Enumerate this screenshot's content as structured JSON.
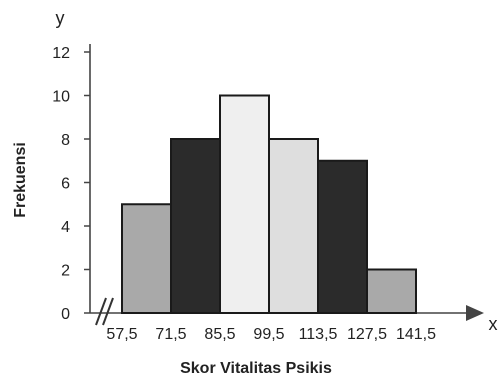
{
  "chart_data": {
    "type": "bar",
    "subtype": "histogram",
    "title": "",
    "x_axis_letter": "x",
    "y_axis_letter": "y",
    "xlabel": "Skor Vitalitas Psikis",
    "ylabel": "Frekuensi",
    "x_tick_labels": [
      "57,5",
      "71,5",
      "85,5",
      "99,5",
      "113,5",
      "127,5",
      "141,5"
    ],
    "y_tick_labels": [
      "0",
      "2",
      "4",
      "6",
      "8",
      "10",
      "12"
    ],
    "ylim": [
      0,
      12
    ],
    "x_axis_break": true,
    "grid": false,
    "bins": [
      {
        "from": 57.5,
        "to": 71.5,
        "value": 5,
        "color": "#a9a9a9"
      },
      {
        "from": 71.5,
        "to": 85.5,
        "value": 8,
        "color": "#2b2b2b"
      },
      {
        "from": 85.5,
        "to": 99.5,
        "value": 10,
        "color": "#efefef"
      },
      {
        "from": 99.5,
        "to": 113.5,
        "value": 8,
        "color": "#dedede"
      },
      {
        "from": 113.5,
        "to": 127.5,
        "value": 7,
        "color": "#2b2b2b"
      },
      {
        "from": 127.5,
        "to": 141.5,
        "value": 2,
        "color": "#a9a9a9"
      }
    ]
  }
}
